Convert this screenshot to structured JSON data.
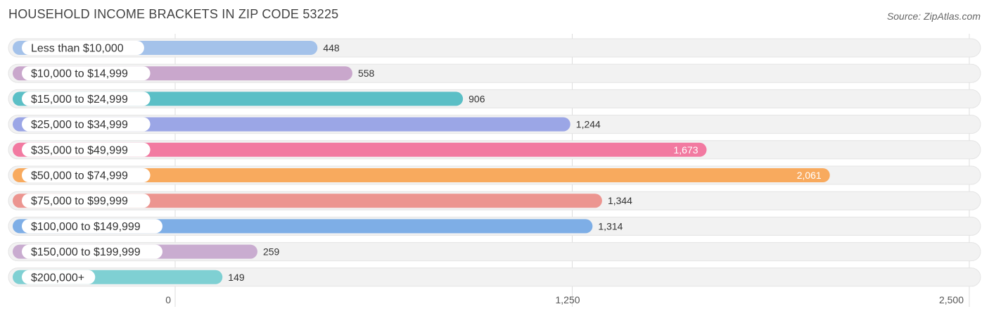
{
  "title": "HOUSEHOLD INCOME BRACKETS IN ZIP CODE 53225",
  "source": "Source: ZipAtlas.com",
  "chart_data": {
    "type": "bar",
    "orientation": "horizontal",
    "title": "HOUSEHOLD INCOME BRACKETS IN ZIP CODE 53225",
    "categories": [
      "Less than $10,000",
      "$10,000 to $14,999",
      "$15,000 to $24,999",
      "$25,000 to $34,999",
      "$35,000 to $49,999",
      "$50,000 to $74,999",
      "$75,000 to $99,999",
      "$100,000 to $149,999",
      "$150,000 to $199,999",
      "$200,000+"
    ],
    "values": [
      448,
      558,
      906,
      1244,
      1673,
      2061,
      1344,
      1314,
      259,
      149
    ],
    "value_labels": [
      "448",
      "558",
      "906",
      "1,244",
      "1,673",
      "2,061",
      "1,344",
      "1,314",
      "259",
      "149"
    ],
    "colors": [
      "#a4c2ea",
      "#c9a7cc",
      "#5bbfc6",
      "#9ba6e6",
      "#f27aa1",
      "#f8aa5e",
      "#ec9590",
      "#7eaee6",
      "#c9acd0",
      "#7fd0d3"
    ],
    "xlim": [
      0,
      2500
    ],
    "xticks": [
      0,
      1250,
      2500
    ],
    "xtick_labels": [
      "0",
      "1,250",
      "2,500"
    ],
    "grid": true
  }
}
